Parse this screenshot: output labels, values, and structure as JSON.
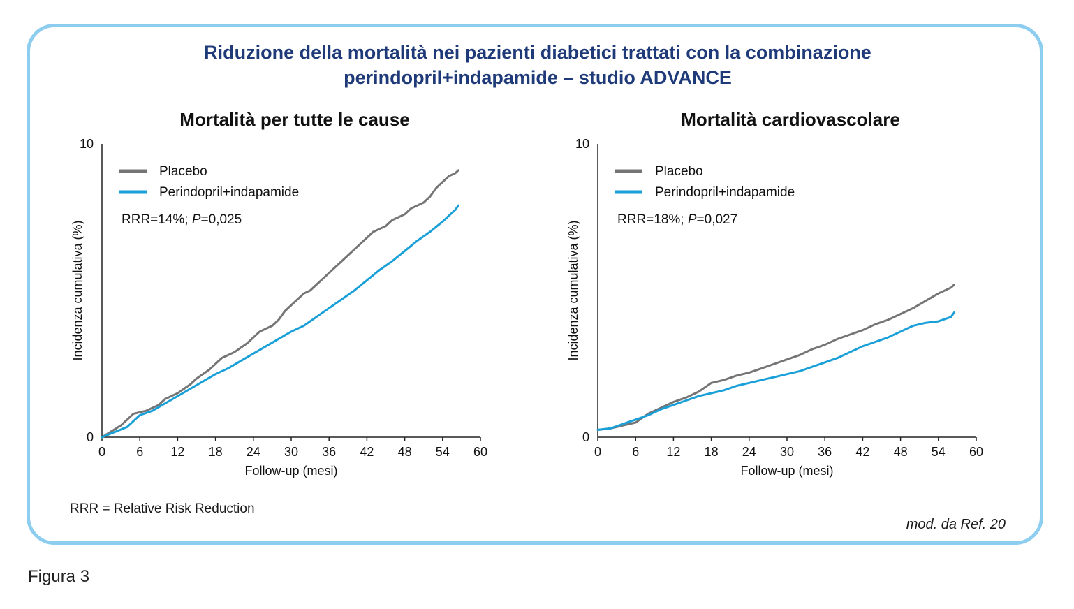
{
  "title_line1": "Riduzione della mortalità nei pazienti diabetici trattati con la combinazione",
  "title_line2": "perindopril+indapamide – studio ADVANCE",
  "footnote": "RRR = Relative Risk Reduction",
  "source": "mod. da Ref. 20",
  "figure_label": "Figura 3",
  "colors": {
    "placebo": "#757575",
    "treatment": "#1aa0d8",
    "title": "#1f3a78",
    "frame": "#8ccdf0"
  },
  "chart_data": [
    {
      "type": "line",
      "title": "Mortalità per tutte le cause",
      "xlabel": "Follow-up (mesi)",
      "ylabel": "Incidenza cumulativa (%)",
      "xlim": [
        0,
        60
      ],
      "ylim": [
        0,
        10
      ],
      "xticks": [
        "0",
        "6",
        "12",
        "18",
        "24",
        "30",
        "36",
        "42",
        "48",
        "54",
        "60"
      ],
      "yticks": [
        "0",
        "10"
      ],
      "annotation": {
        "prefix": "RRR=14%; ",
        "p": "P",
        "suffix": "=0,025"
      },
      "legend_position": "top-left",
      "series": [
        {
          "name": "Placebo",
          "x": [
            0,
            3,
            5,
            7,
            9,
            10,
            11,
            12,
            14,
            15,
            17,
            18,
            19,
            21,
            23,
            24,
            25,
            27,
            28,
            29,
            30,
            31,
            32,
            33,
            34,
            35,
            36,
            37,
            38,
            39,
            40,
            41,
            42,
            43,
            44,
            45,
            46,
            47,
            48,
            49,
            50,
            51,
            52,
            53,
            54,
            55,
            56,
            56.5
          ],
          "y": [
            0,
            0.4,
            0.8,
            0.9,
            1.1,
            1.3,
            1.4,
            1.5,
            1.8,
            2.0,
            2.3,
            2.5,
            2.7,
            2.9,
            3.2,
            3.4,
            3.6,
            3.8,
            4.0,
            4.3,
            4.5,
            4.7,
            4.9,
            5.0,
            5.2,
            5.4,
            5.6,
            5.8,
            6.0,
            6.2,
            6.4,
            6.6,
            6.8,
            7.0,
            7.1,
            7.2,
            7.4,
            7.5,
            7.6,
            7.8,
            7.9,
            8.0,
            8.2,
            8.5,
            8.7,
            8.9,
            9.0,
            9.1
          ]
        },
        {
          "name": "Perindopril+indapamide",
          "x": [
            0,
            4,
            6,
            8,
            10,
            12,
            14,
            16,
            18,
            20,
            22,
            24,
            26,
            28,
            30,
            32,
            34,
            36,
            38,
            40,
            42,
            44,
            46,
            48,
            50,
            52,
            54,
            55,
            56,
            56.5
          ],
          "y": [
            0,
            0.35,
            0.75,
            0.9,
            1.15,
            1.4,
            1.65,
            1.9,
            2.15,
            2.35,
            2.6,
            2.85,
            3.1,
            3.35,
            3.6,
            3.8,
            4.1,
            4.4,
            4.7,
            5.0,
            5.35,
            5.7,
            6.0,
            6.35,
            6.7,
            7.0,
            7.35,
            7.55,
            7.75,
            7.9
          ]
        }
      ]
    },
    {
      "type": "line",
      "title": "Mortalità cardiovascolare",
      "xlabel": "Follow-up (mesi)",
      "ylabel": "Incidenza cumulativa (%)",
      "xlim": [
        0,
        60
      ],
      "ylim": [
        0,
        10
      ],
      "xticks": [
        "0",
        "6",
        "12",
        "18",
        "24",
        "30",
        "36",
        "42",
        "48",
        "54",
        "60"
      ],
      "yticks": [
        "0",
        "10"
      ],
      "annotation": {
        "prefix": "RRR=18%; ",
        "p": "P",
        "suffix": "=0,027"
      },
      "legend_position": "top-left",
      "series": [
        {
          "name": "Placebo",
          "x": [
            0,
            2,
            4,
            6,
            8,
            10,
            12,
            14,
            16,
            18,
            20,
            22,
            24,
            26,
            28,
            30,
            32,
            34,
            36,
            38,
            40,
            42,
            44,
            46,
            48,
            50,
            52,
            54,
            56,
            56.5
          ],
          "y": [
            0.25,
            0.3,
            0.4,
            0.5,
            0.8,
            1.0,
            1.2,
            1.35,
            1.55,
            1.85,
            1.95,
            2.1,
            2.2,
            2.35,
            2.5,
            2.65,
            2.8,
            3.0,
            3.15,
            3.35,
            3.5,
            3.65,
            3.85,
            4.0,
            4.2,
            4.4,
            4.65,
            4.9,
            5.1,
            5.2
          ]
        },
        {
          "name": "Perindopril+indapamide",
          "x": [
            0,
            2,
            4,
            6,
            8,
            10,
            12,
            14,
            16,
            18,
            20,
            22,
            24,
            26,
            28,
            30,
            32,
            34,
            36,
            38,
            40,
            42,
            44,
            46,
            48,
            50,
            52,
            54,
            56,
            56.5
          ],
          "y": [
            0.25,
            0.3,
            0.45,
            0.6,
            0.75,
            0.95,
            1.1,
            1.25,
            1.4,
            1.5,
            1.6,
            1.75,
            1.85,
            1.95,
            2.05,
            2.15,
            2.25,
            2.4,
            2.55,
            2.7,
            2.9,
            3.1,
            3.25,
            3.4,
            3.6,
            3.8,
            3.9,
            3.95,
            4.1,
            4.25
          ]
        }
      ]
    }
  ]
}
